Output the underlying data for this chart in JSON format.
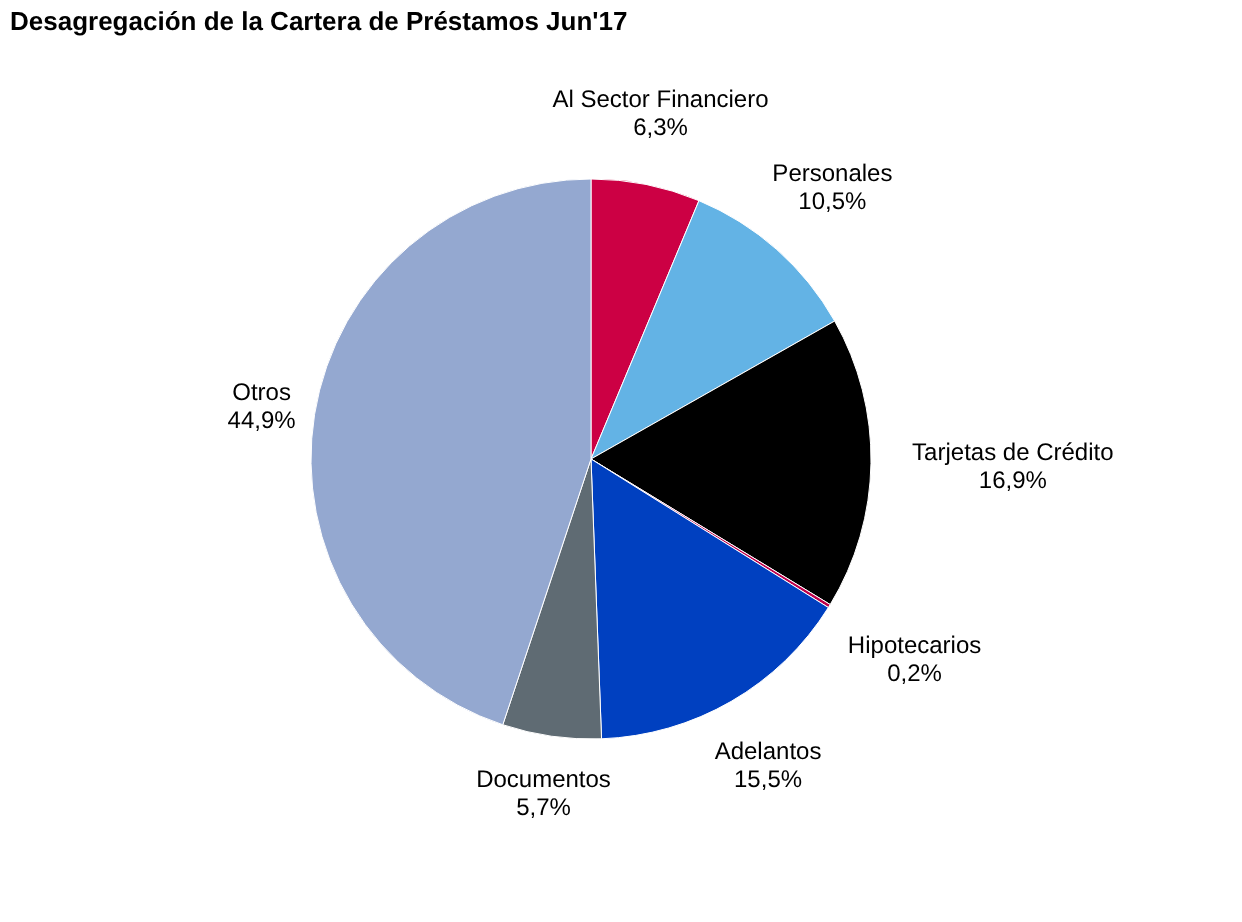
{
  "chart_data": {
    "type": "pie",
    "title": "Desagregación de la Cartera de Préstamos  Jun'17",
    "categories": [
      "Al Sector Financiero",
      "Personales",
      "Tarjetas de Crédito",
      "Hipotecarios",
      "Adelantos",
      "Documentos",
      "Otros"
    ],
    "values": [
      6.3,
      10.5,
      16.9,
      0.2,
      15.5,
      5.7,
      44.9
    ],
    "value_labels": [
      "6,3%",
      "10,5%",
      "16,9%",
      "0,2%",
      "15,5%",
      "5,7%",
      "44,9%"
    ],
    "colors": [
      "#cc0044",
      "#63b3e5",
      "#000000",
      "#c0004a",
      "#0040c0",
      "#5f6b73",
      "#94a8d0"
    ],
    "legend": false
  }
}
